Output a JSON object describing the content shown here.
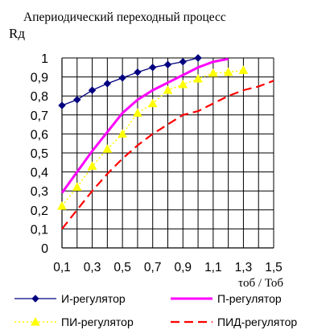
{
  "chart_data": {
    "type": "line",
    "title": "Апериодический переходный процесс",
    "ylabel": "Rд",
    "xlabel": "τоб / Тоб",
    "xlim": [
      0.1,
      1.5
    ],
    "ylim": [
      0,
      1
    ],
    "grid": true,
    "legend_placement": "bottom",
    "xticks": [
      "0,1",
      "0,3",
      "0,5",
      "0,7",
      "0,9",
      "1,1",
      "1,3",
      "1,5"
    ],
    "yticks": [
      "0",
      "0,1",
      "0,2",
      "0,3",
      "0,4",
      "0,5",
      "0,6",
      "0,7",
      "0,8",
      "0,9",
      "1"
    ],
    "series": [
      {
        "name": "И-регулятор",
        "color": "#000080",
        "style": "solid-diamond",
        "x": [
          0.1,
          0.2,
          0.3,
          0.4,
          0.5,
          0.6,
          0.7,
          0.8,
          0.9,
          1.0
        ],
        "y": [
          0.75,
          0.78,
          0.83,
          0.865,
          0.895,
          0.925,
          0.95,
          0.965,
          0.98,
          1.0
        ]
      },
      {
        "name": "П-регулятор",
        "color": "#ff00ff",
        "style": "thick-solid",
        "x": [
          0.1,
          0.2,
          0.3,
          0.4,
          0.5,
          0.6,
          0.7,
          0.8,
          0.9,
          1.0,
          1.1,
          1.2
        ],
        "y": [
          0.29,
          0.4,
          0.51,
          0.61,
          0.71,
          0.78,
          0.83,
          0.87,
          0.91,
          0.95,
          0.98,
          0.995
        ]
      },
      {
        "name": "ПИ-регулятор",
        "color": "#ffff00",
        "style": "dotted-triangle",
        "x": [
          0.1,
          0.2,
          0.3,
          0.4,
          0.5,
          0.6,
          0.7,
          0.8,
          0.9,
          1.0,
          1.1,
          1.2,
          1.3
        ],
        "y": [
          0.22,
          0.32,
          0.43,
          0.52,
          0.6,
          0.71,
          0.76,
          0.83,
          0.86,
          0.89,
          0.92,
          0.925,
          0.935
        ]
      },
      {
        "name": "ПИД-регулятор",
        "color": "#ff0000",
        "style": "dashed",
        "x": [
          0.1,
          0.2,
          0.3,
          0.4,
          0.5,
          0.6,
          0.7,
          0.8,
          0.9,
          1.0,
          1.1,
          1.2,
          1.3,
          1.4,
          1.5
        ],
        "y": [
          0.1,
          0.2,
          0.3,
          0.39,
          0.47,
          0.54,
          0.6,
          0.65,
          0.7,
          0.72,
          0.76,
          0.8,
          0.83,
          0.85,
          0.88
        ]
      }
    ]
  }
}
